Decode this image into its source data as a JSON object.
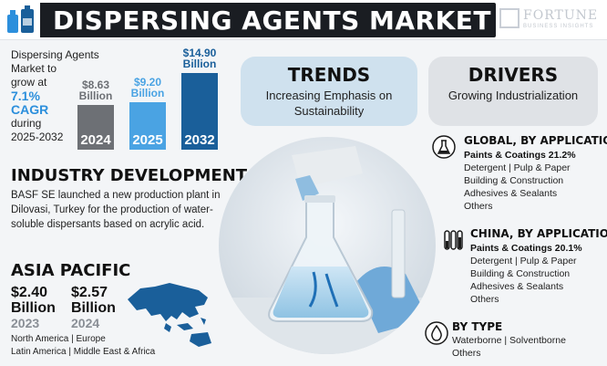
{
  "header": {
    "title": "DISPERSING AGENTS MARKET",
    "brand_name": "FORTUNE",
    "brand_sub": "BUSINESS INSIGHTS"
  },
  "growth": {
    "line1": "Dispersing Agents",
    "line2": "Market to",
    "line3": "grow at",
    "cagr": "7.1%",
    "cagr_label": "CAGR",
    "line4": "during",
    "period": "2025-2032"
  },
  "chart_data": {
    "type": "bar",
    "categories": [
      "2024",
      "2025",
      "2032"
    ],
    "values": [
      8.63,
      9.2,
      14.9
    ],
    "value_labels": [
      "$8.63 Billion",
      "$9.20 Billion",
      "$14.90 Billion"
    ],
    "value_top": [
      "$8.63",
      "$9.20",
      "$14.90"
    ],
    "value_bottom": [
      "Billion",
      "Billion",
      "Billion"
    ],
    "colors": [
      "#6d7075",
      "#4aa3e3",
      "#1a5f9a"
    ],
    "label_colors": [
      "#6d7075",
      "#4aa3e3",
      "#1a5f9a"
    ]
  },
  "industry": {
    "title": "INDUSTRY DEVELOPMENT",
    "text": "BASF SE launched a new production plant in Dilovasi, Turkey for the production of water-soluble dispersants based on acrylic acid."
  },
  "asia": {
    "title": "ASIA PACIFIC",
    "v1": "$2.40",
    "v1b": "Billion",
    "y1": "2023",
    "v2": "$2.57",
    "v2b": "Billion",
    "y2": "2024",
    "regions1": "North America  |  Europe",
    "regions2": "Latin America  |  Middle East & Africa"
  },
  "trends": {
    "head": "TRENDS",
    "text": "Increasing Emphasis on Sustainability"
  },
  "drivers": {
    "head": "DRIVERS",
    "text": "Growing Industrialization"
  },
  "global": {
    "title": "GLOBAL, BY APPLICATION",
    "lead": "Paints & Coatings 21.2%",
    "items": [
      "Detergent  |  Pulp & Paper",
      "Building & Construction",
      "Adhesives & Sealants",
      "Others"
    ]
  },
  "china": {
    "title": "CHINA, BY APPLICATION",
    "lead": "Paints & Coatings 20.1%",
    "items": [
      "Detergent  |  Pulp & Paper",
      "Building & Construction",
      "Adhesives & Sealants",
      "Others"
    ]
  },
  "bytype": {
    "title": "BY TYPE",
    "line1": "Waterborne  |  Solventborne",
    "line2": "Others"
  },
  "colors": {
    "accent_blue": "#2c8fdc",
    "title_bar": "#1a1d22",
    "trends_bg": "#cfe1ee",
    "drivers_bg": "#dfe2e6"
  },
  "icons": {
    "header": "chemical-bottles-icon",
    "global": "lab-flask-icon",
    "china": "test-tubes-icon",
    "type": "water-drop-icon",
    "map": "asia-pacific-map-icon"
  }
}
